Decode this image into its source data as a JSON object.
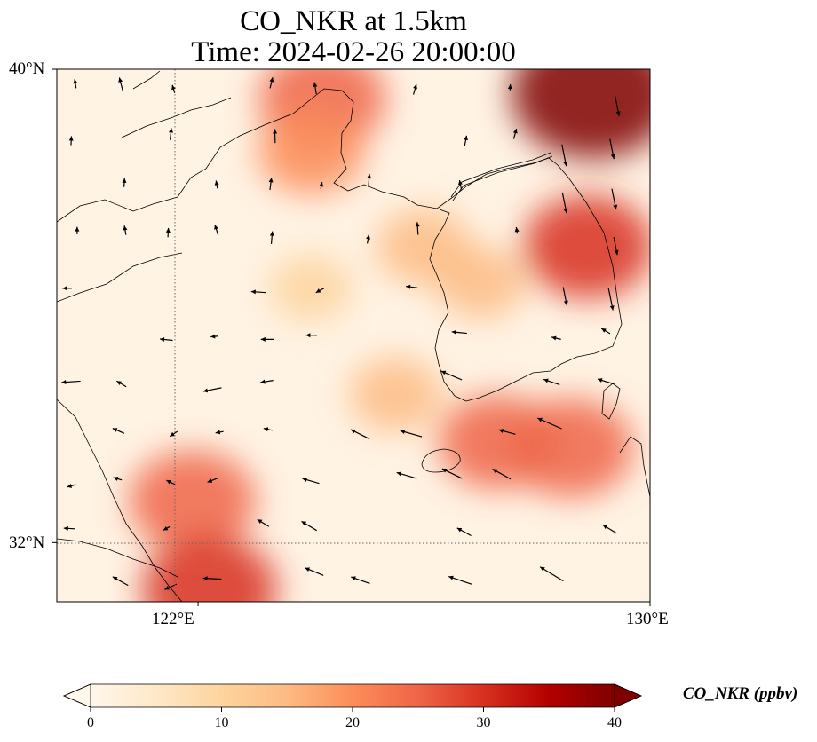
{
  "title": {
    "line1": "CO_NKR at 1.5km",
    "line2": "Time: 2024-02-26 20:00:00"
  },
  "map": {
    "variable": "CO_NKR",
    "level": "1.5km",
    "time": "2024-02-26 20:00:00",
    "lon_range": [
      119.5,
      130.0
    ],
    "lat_range": [
      31.0,
      40.0
    ],
    "lat_ticks": [
      {
        "value": 40,
        "label": "40°N"
      },
      {
        "value": 32,
        "label": "32°N"
      }
    ],
    "lon_ticks": [
      {
        "value": 122,
        "label": "122°E"
      },
      {
        "value": 130,
        "label": "130°E"
      }
    ],
    "gridlines": {
      "lon": [
        122
      ],
      "lat": [
        32
      ],
      "style": "dotted"
    },
    "features": [
      "coastlines",
      "wind-vectors"
    ]
  },
  "colorbar": {
    "label": "CO_NKR (ppbv)",
    "min": 0,
    "max": 40,
    "extend": "both",
    "colormap": "OrRd",
    "ticks": [
      {
        "value": 0,
        "label": "0"
      },
      {
        "value": 10,
        "label": "10"
      },
      {
        "value": 20,
        "label": "20"
      },
      {
        "value": 30,
        "label": "30"
      },
      {
        "value": 40,
        "label": "40"
      }
    ],
    "colors": [
      "#fff7ec",
      "#fee8c8",
      "#fdd49e",
      "#fdbb84",
      "#fc8d59",
      "#ef6548",
      "#d7301f",
      "#b30000",
      "#7f0000"
    ]
  },
  "chart_data": {
    "type": "heatmap",
    "title": "CO_NKR at 1.5km\nTime: 2024-02-26 20:00:00",
    "xlabel": "",
    "ylabel": "",
    "xlim": [
      119.5,
      130.0
    ],
    "ylim": [
      31.0,
      40.0
    ],
    "value_range": [
      0,
      40
    ],
    "hotspots": [
      {
        "lon": 129.0,
        "lat": 39.6,
        "value": 40
      },
      {
        "lon": 128.9,
        "lat": 37.0,
        "value": 28
      },
      {
        "lon": 128.6,
        "lat": 33.6,
        "value": 26
      },
      {
        "lon": 127.3,
        "lat": 33.7,
        "value": 24
      },
      {
        "lon": 121.9,
        "lat": 32.7,
        "value": 27
      },
      {
        "lon": 122.2,
        "lat": 31.2,
        "value": 30
      },
      {
        "lon": 124.2,
        "lat": 39.5,
        "value": 27
      },
      {
        "lon": 124.0,
        "lat": 38.6,
        "value": 20
      },
      {
        "lon": 126.0,
        "lat": 37.0,
        "value": 16
      },
      {
        "lon": 127.0,
        "lat": 36.4,
        "value": 14
      },
      {
        "lon": 125.5,
        "lat": 34.5,
        "value": 15
      },
      {
        "lon": 124.0,
        "lat": 36.3,
        "value": 12
      }
    ]
  }
}
